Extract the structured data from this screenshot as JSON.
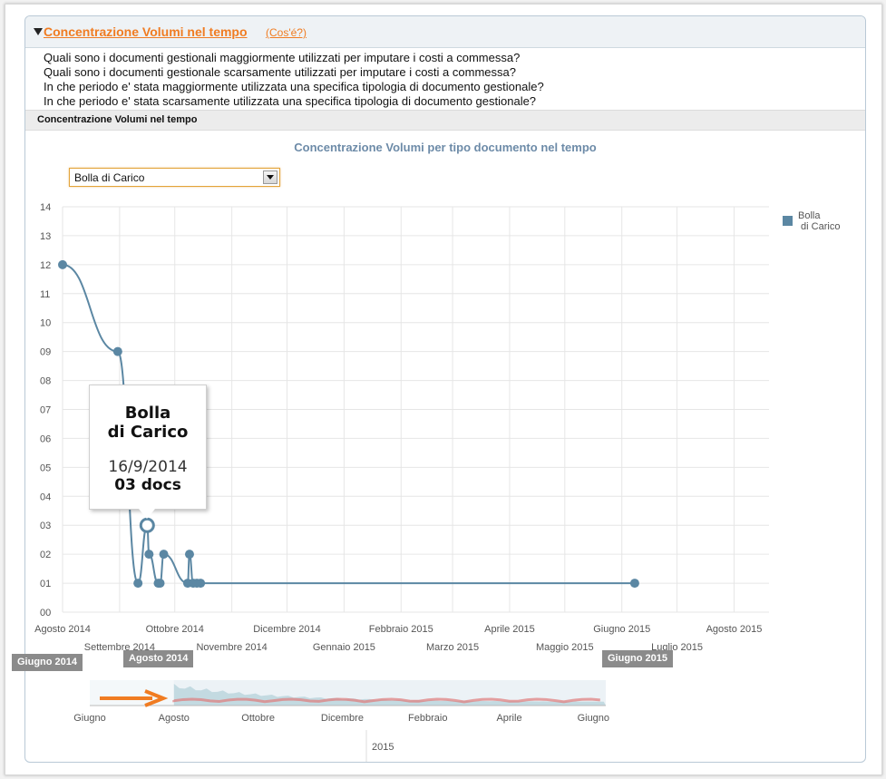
{
  "panel": {
    "title": "Concentrazione Volumi nel tempo",
    "whatis_link": "(Cos'é?)",
    "questions": [
      "Quali sono i documenti gestionali maggiormente utilizzati per imputare i costi a commessa?",
      "Quali sono i documenti gestionale scarsamente utilizzati per imputare i costi a commessa?",
      "In che periodo e' stata maggiormente utilizzata una specifica tipologia di documento gestionale?",
      "In che periodo e' stata scarsamente utilizzata una specifica tipologia di documento gestionale?"
    ],
    "section_title": "Concentrazione Volumi nel tempo"
  },
  "colors": {
    "accent": "#f07c22",
    "series": "#5b87a3",
    "title": "#6d8ba8",
    "grid": "#e6e6e6",
    "navigator_flag": "#8b8b8b"
  },
  "select": {
    "value": "Bolla di Carico"
  },
  "legend": {
    "label": "Bolla\n di Carico"
  },
  "tooltip": {
    "series": "Bolla\ndi Carico",
    "date": "16/9/2014",
    "value": "03 docs"
  },
  "chart_data": {
    "type": "line",
    "title": "Concentrazione Volumi per tipo documento nel tempo",
    "xlabel": "",
    "ylabel": "",
    "y_ticks": [
      "00",
      "01",
      "02",
      "03",
      "04",
      "05",
      "06",
      "07",
      "08",
      "09",
      "10",
      "11",
      "12",
      "13",
      "14"
    ],
    "ylim": [
      0,
      14
    ],
    "xlim": [
      "2014-08-01",
      "2015-08-20"
    ],
    "x_ticks": [
      {
        "date": "2014-08-01",
        "label": "Agosto 2014",
        "row": 1
      },
      {
        "date": "2014-09-01",
        "label": "Settembre 2014",
        "row": 2
      },
      {
        "date": "2014-10-01",
        "label": "Ottobre 2014",
        "row": 1
      },
      {
        "date": "2014-11-01",
        "label": "Novembre 2014",
        "row": 2
      },
      {
        "date": "2014-12-01",
        "label": "Dicembre 2014",
        "row": 1
      },
      {
        "date": "2015-01-01",
        "label": "Gennaio 2015",
        "row": 2
      },
      {
        "date": "2015-02-01",
        "label": "Febbraio 2015",
        "row": 1
      },
      {
        "date": "2015-03-01",
        "label": "Marzo 2015",
        "row": 2
      },
      {
        "date": "2015-04-01",
        "label": "Aprile 2015",
        "row": 1
      },
      {
        "date": "2015-05-01",
        "label": "Maggio 2015",
        "row": 2
      },
      {
        "date": "2015-06-01",
        "label": "Giugno 2015",
        "row": 1
      },
      {
        "date": "2015-07-01",
        "label": "Luglio 2015",
        "row": 2
      },
      {
        "date": "2015-08-01",
        "label": "Agosto 2015",
        "row": 1
      }
    ],
    "grid": true,
    "legend_position": "right",
    "series": [
      {
        "name": "Bolla di Carico",
        "points": [
          {
            "x": "2014-08-01",
            "y": 12
          },
          {
            "x": "2014-08-31",
            "y": 9
          },
          {
            "x": "2014-09-11",
            "y": 1
          },
          {
            "x": "2014-09-16",
            "y": 3
          },
          {
            "x": "2014-09-17",
            "y": 2
          },
          {
            "x": "2014-09-22",
            "y": 1
          },
          {
            "x": "2014-09-23",
            "y": 1
          },
          {
            "x": "2014-09-25",
            "y": 2
          },
          {
            "x": "2014-10-08",
            "y": 1
          },
          {
            "x": "2014-10-09",
            "y": 2
          },
          {
            "x": "2014-10-11",
            "y": 1
          },
          {
            "x": "2014-10-13",
            "y": 1
          },
          {
            "x": "2014-10-15",
            "y": 1
          },
          {
            "x": "2015-06-08",
            "y": 1
          }
        ]
      }
    ],
    "highlight": {
      "x": "2014-09-16",
      "y": 3
    },
    "navigator": {
      "range_start_label": "Giugno 2014",
      "selected_start_label": "Agosto 2014",
      "range_end_label": "Giugno 2015",
      "ticks": [
        "Giugno",
        "Agosto",
        "Ottobre",
        "Dicembre",
        "Febbraio",
        "Aprile",
        "Giugno"
      ],
      "year_label": "2015"
    }
  }
}
